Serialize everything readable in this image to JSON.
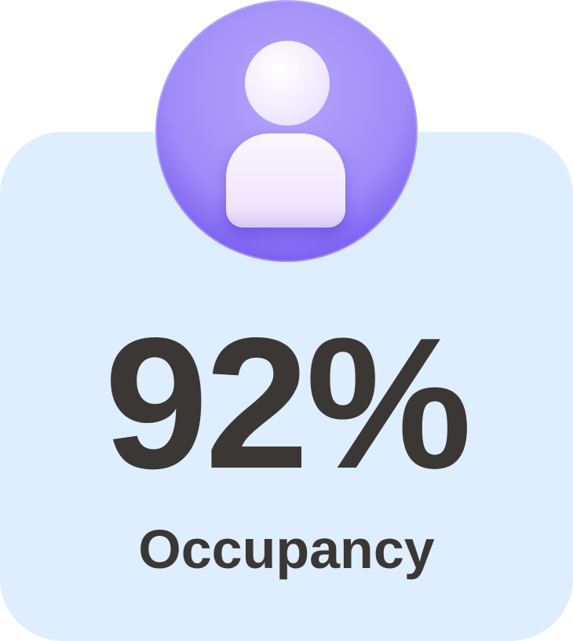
{
  "stat": {
    "value": "92%",
    "label": "Occupancy",
    "icon": "user-icon",
    "accent": "#9f8cf8",
    "card_bg": "#deeefe"
  }
}
